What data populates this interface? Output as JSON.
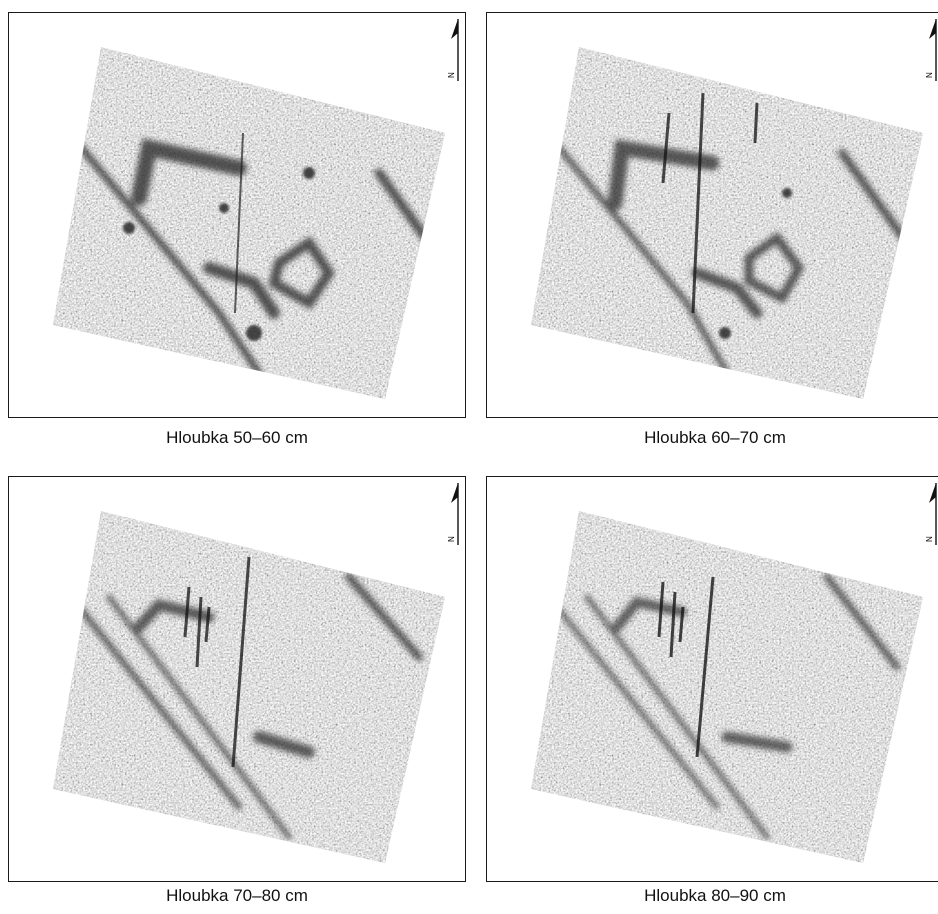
{
  "panels": [
    {
      "caption": "Hloubka 50–60 cm",
      "north_label": "N"
    },
    {
      "caption": "Hloubka 60–70 cm",
      "north_label": "N"
    },
    {
      "caption": "Hloubka 70–80 cm",
      "north_label": "N"
    },
    {
      "caption": "Hloubka 80–90 cm",
      "north_label": "N"
    }
  ]
}
